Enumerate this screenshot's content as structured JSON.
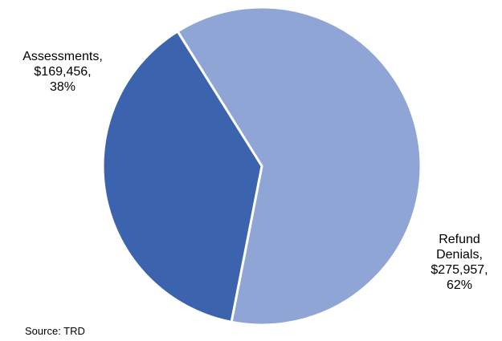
{
  "chart_data": {
    "type": "pie",
    "slices": [
      {
        "name": "Refund Denials",
        "label_lines": [
          "Refund",
          "Denials,",
          "$275,957,",
          "62%"
        ],
        "value": 275957,
        "percent": 62,
        "color": "#8FA5D6"
      },
      {
        "name": "Assessments",
        "label_lines": [
          "Assessments,",
          "$169,456,",
          "38%"
        ],
        "value": 169456,
        "percent": 38,
        "color": "#3C63AE"
      }
    ],
    "source": "Source: TRD"
  }
}
